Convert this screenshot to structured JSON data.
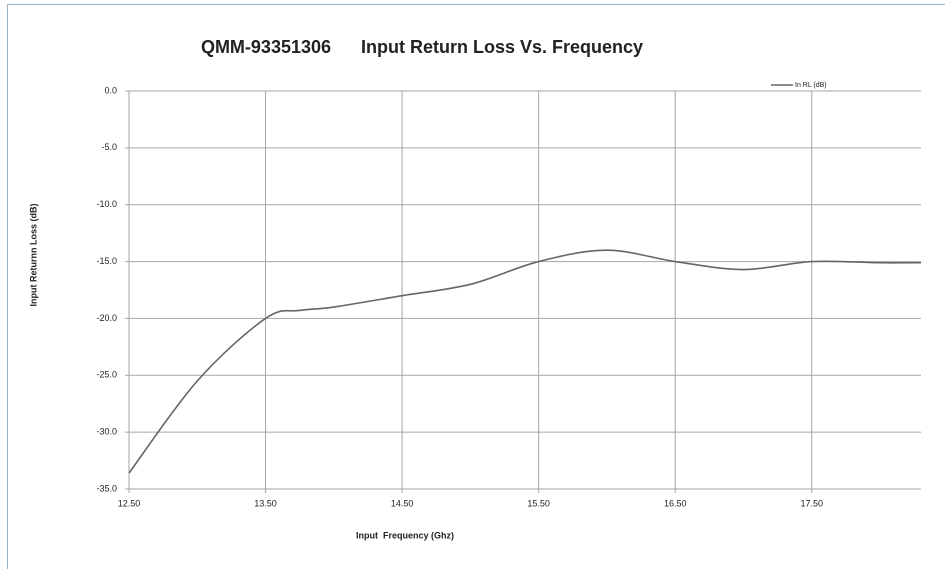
{
  "chart_data": {
    "type": "line",
    "title": "QMM-93351306      Input Return Loss Vs. Frequency",
    "x_label": "Input  Frequency (Ghz)",
    "y_label": "Input Returnn Loss (dB)",
    "x": [
      12.5,
      13.0,
      13.5,
      13.75,
      14.0,
      14.5,
      15.0,
      15.5,
      16.0,
      16.5,
      17.0,
      17.5,
      18.0,
      18.3
    ],
    "series": [
      {
        "name": "In RL (dB)",
        "color": "#666666",
        "values": [
          -33.6,
          -25.5,
          -20.0,
          -19.3,
          -19.0,
          -18.0,
          -17.0,
          -15.0,
          -14.0,
          -15.0,
          -15.7,
          -15.0,
          -15.1,
          -15.1
        ]
      }
    ],
    "xlim": [
      12.5,
      18.3
    ],
    "xticks": [
      {
        "value": 12.5,
        "label": "12.50"
      },
      {
        "value": 13.5,
        "label": "13.50"
      },
      {
        "value": 14.5,
        "label": "14.50"
      },
      {
        "value": 15.5,
        "label": "15.50"
      },
      {
        "value": 16.5,
        "label": "16.50"
      },
      {
        "value": 17.5,
        "label": "17.50"
      }
    ],
    "ylim": [
      -35,
      0
    ],
    "yticks": [
      {
        "value": 0,
        "label": "0.0"
      },
      {
        "value": -5,
        "label": "-5.0"
      },
      {
        "value": -10,
        "label": "-10.0"
      },
      {
        "value": -15,
        "label": "-15.0"
      },
      {
        "value": -20,
        "label": "-20.0"
      },
      {
        "value": -25,
        "label": "-25.0"
      },
      {
        "value": -30,
        "label": "-30.0"
      },
      {
        "value": -35,
        "label": "-35.0"
      }
    ],
    "grid": true,
    "legend": "top-right"
  }
}
